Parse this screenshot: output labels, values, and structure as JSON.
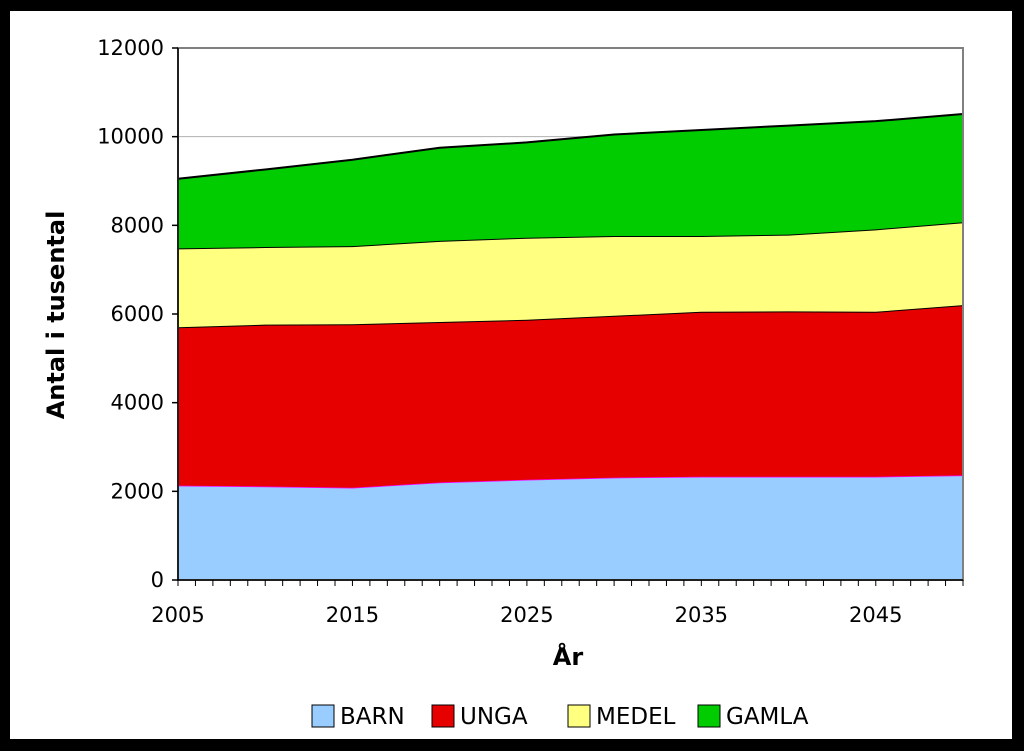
{
  "chart_data": {
    "type": "area",
    "stacked": true,
    "title": "",
    "xlabel": "År",
    "ylabel": "Antal i tusental",
    "xlim": [
      2005,
      2050
    ],
    "ylim": [
      0,
      12000
    ],
    "x_ticks": [
      2005,
      2015,
      2025,
      2035,
      2045
    ],
    "y_ticks": [
      0,
      2000,
      4000,
      6000,
      8000,
      10000,
      12000
    ],
    "grid": true,
    "legend_position": "bottom",
    "x": [
      2005,
      2010,
      2015,
      2020,
      2025,
      2030,
      2035,
      2040,
      2045,
      2050
    ],
    "series": [
      {
        "name": "BARN",
        "color": "#99ccff",
        "values": [
          2130,
          2110,
          2080,
          2200,
          2260,
          2310,
          2330,
          2330,
          2330,
          2360
        ]
      },
      {
        "name": "UNGA",
        "color": "#e60000",
        "values": [
          3570,
          3650,
          3690,
          3620,
          3610,
          3650,
          3720,
          3730,
          3720,
          3840
        ]
      },
      {
        "name": "MEDEL",
        "color": "#ffff80",
        "values": [
          1780,
          1750,
          1760,
          1830,
          1850,
          1800,
          1710,
          1730,
          1860,
          1870
        ]
      },
      {
        "name": "GAMLA",
        "color": "#00cc00",
        "values": [
          1570,
          1750,
          1950,
          2100,
          2150,
          2290,
          2390,
          2460,
          2440,
          2440
        ]
      }
    ]
  }
}
